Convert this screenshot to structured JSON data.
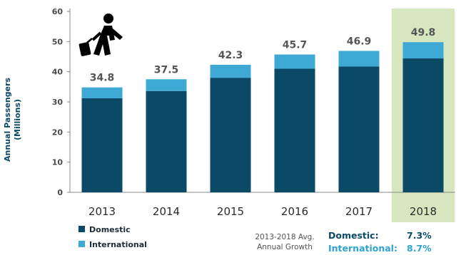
{
  "chart_data": {
    "type": "bar",
    "stacked": true,
    "categories": [
      "2013",
      "2014",
      "2015",
      "2016",
      "2017",
      "2018"
    ],
    "series": [
      {
        "name": "Domestic",
        "color": "#0b4a66",
        "values": [
          31.2,
          33.6,
          38.0,
          41.0,
          41.7,
          44.4
        ]
      },
      {
        "name": "International",
        "color": "#3fa9d6",
        "values": [
          3.6,
          3.9,
          4.3,
          4.7,
          5.2,
          5.4
        ]
      }
    ],
    "totals": [
      "34.8",
      "37.5",
      "42.3",
      "45.7",
      "46.9",
      "49.8"
    ],
    "ylabel": "Annual Passengers",
    "ylabel_sub": "(Millions)",
    "ylim": [
      0,
      60
    ],
    "yticks": [
      "0",
      "10",
      "20",
      "30",
      "40",
      "50",
      "60"
    ],
    "highlight_category": "2018",
    "highlight_color": "#d6e6bf",
    "grid": false,
    "legend_position": "bottom-left",
    "icon": "traveler-with-luggage-icon"
  },
  "growth": {
    "title_line1": "2013-2018 Avg.",
    "title_line2": "Annual Growth",
    "domestic_label": "Domestic:",
    "domestic_value": "7.3%",
    "international_label": "International:",
    "international_value": "8.7%"
  }
}
